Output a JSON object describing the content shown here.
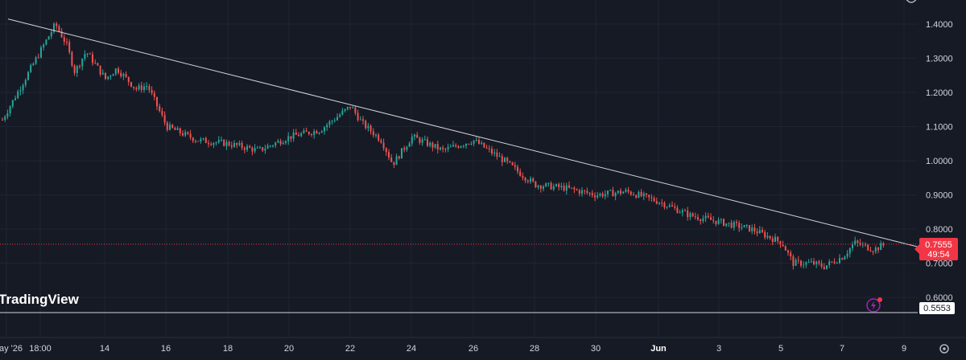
{
  "watermark": "TradingView",
  "colors": {
    "background": "#161a25",
    "grid": "#1f2433",
    "up": "#26a69a",
    "down": "#ef5350",
    "trendline": "#d1d4dc",
    "price_label_bg": "#f23645",
    "lightning_badge": "#9c27b0"
  },
  "icons": [
    "lightning-icon",
    "gear-icon",
    "scroll-up-icon"
  ],
  "chart_data": {
    "type": "candlestick",
    "y_axis": {
      "ticks": [
        "1.4000",
        "1.3000",
        "1.2000",
        "1.1000",
        "1.0000",
        "0.9000",
        "0.8000",
        "0.7000",
        "0.6000"
      ],
      "range": [
        0.535,
        1.46
      ]
    },
    "x_axis": {
      "ticks": [
        "ay '26",
        "18:00",
        "14",
        "16",
        "18",
        "20",
        "22",
        "24",
        "26",
        "28",
        "30",
        "Jun",
        "3",
        "5",
        "7",
        "9"
      ]
    },
    "current_price": {
      "value": "0.7555",
      "countdown": "49:54"
    },
    "horizontal_level": {
      "value": "0.5553"
    },
    "trendline": {
      "start": {
        "date": "May 12",
        "price": 1.415
      },
      "end": {
        "date": "Jun 8",
        "price": 0.76
      }
    },
    "price_path": [
      [
        "May 12",
        1.12
      ],
      [
        "May 12",
        1.4
      ],
      [
        "May 12",
        1.34
      ],
      [
        "May 13",
        1.26
      ],
      [
        "May 13",
        1.32
      ],
      [
        "May 14",
        1.24
      ],
      [
        "May 14",
        1.27
      ],
      [
        "May 15",
        1.21
      ],
      [
        "May 15",
        1.22
      ],
      [
        "May 16",
        1.1
      ],
      [
        "May 17",
        1.06
      ],
      [
        "May 18",
        1.05
      ],
      [
        "May 19",
        1.03
      ],
      [
        "May 20",
        1.07
      ],
      [
        "May 21",
        1.09
      ],
      [
        "May 22",
        1.16
      ],
      [
        "May 22",
        1.11
      ],
      [
        "May 23",
        1.06
      ],
      [
        "May 23",
        0.99
      ],
      [
        "May 24",
        1.07
      ],
      [
        "May 25",
        1.03
      ],
      [
        "May 26",
        1.06
      ],
      [
        "May 27",
        1.0
      ],
      [
        "May 28",
        0.93
      ],
      [
        "May 29",
        0.92
      ],
      [
        "May 30",
        0.9
      ],
      [
        "May 31",
        0.91
      ],
      [
        "Jun 1",
        0.88
      ],
      [
        "Jun 2",
        0.84
      ],
      [
        "Jun 3",
        0.82
      ],
      [
        "Jun 4",
        0.8
      ],
      [
        "Jun 5",
        0.76
      ],
      [
        "Jun 5",
        0.7
      ],
      [
        "Jun 6",
        0.7
      ],
      [
        "Jun 6",
        0.69
      ],
      [
        "Jun 7",
        0.72
      ],
      [
        "Jun 7",
        0.76
      ],
      [
        "Jun 8",
        0.74
      ],
      [
        "Jun 8",
        0.7555
      ]
    ]
  }
}
